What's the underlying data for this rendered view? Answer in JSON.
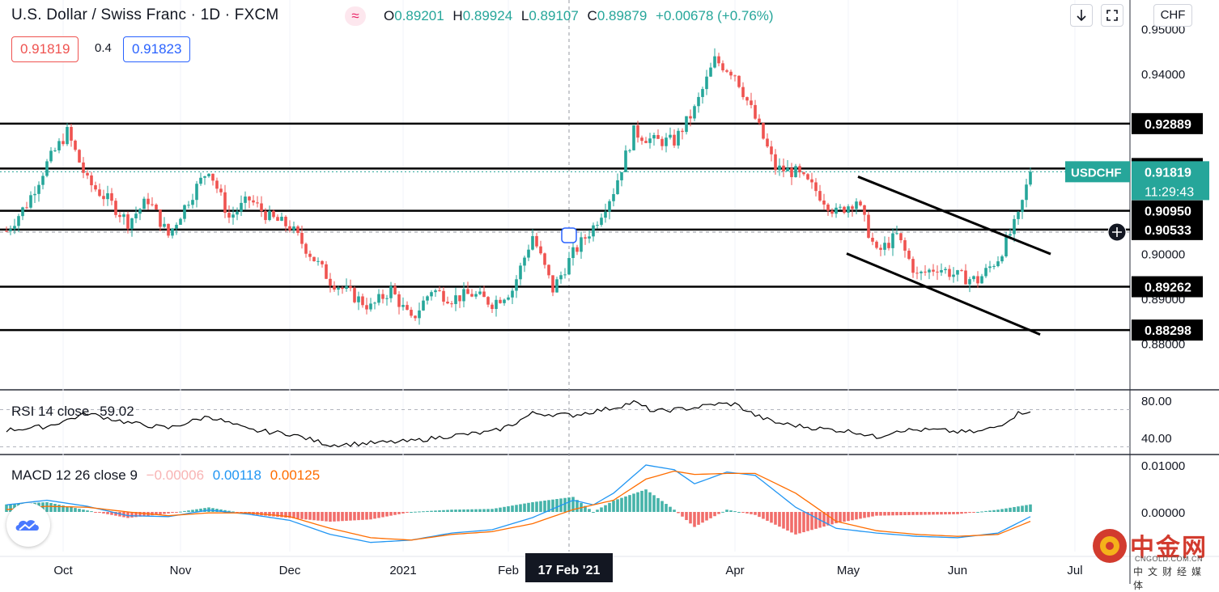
{
  "header": {
    "title": "U.S. Dollar / Swiss Franc · 1D · FXCM",
    "indicator_icon": "≈",
    "ohlc": [
      {
        "k": "O",
        "v": "0.89201"
      },
      {
        "k": "H",
        "v": "0.89924"
      },
      {
        "k": "L",
        "v": "0.89107"
      },
      {
        "k": "C",
        "v": "0.89879"
      }
    ],
    "change": "+0.00678 (+0.76%)",
    "sell_price": "0.91819",
    "spread": "0.4",
    "buy_price": "0.91823"
  },
  "toolbar": {
    "download_icon": "down-arrow-icon",
    "fullscreen_icon": "fullscreen-icon",
    "currency_button": "CHF"
  },
  "rsi": {
    "label": "RSI 14 close",
    "value": "59.02"
  },
  "macd": {
    "label": "MACD 12 26 close 9",
    "hist": "−0.00006",
    "macd": "0.00118",
    "signal": "0.00125"
  },
  "watermark": {
    "name": "中金网",
    "url": "CNGOLD.COM.CN",
    "tag": "中文财经媒体"
  },
  "colors": {
    "up": "#26a69a",
    "down": "#ef5350",
    "level": "#000000",
    "macd": "#2196f3",
    "signal": "#ff6d00",
    "rsi": "#000000",
    "symbol_tag": "#26a69a"
  },
  "chart_data": [
    {
      "type": "candlestick",
      "title": "U.S. Dollar / Swiss Franc · 1D · FXCM",
      "symbol": "USDCHF",
      "x_ticks": [
        "Oct",
        "Nov",
        "Dec",
        "2021",
        "Feb",
        "17 Feb '21",
        "Apr",
        "May",
        "Jun",
        "Jul"
      ],
      "crosshair_date": "17 Feb '21",
      "y_ticks": [
        0.95,
        0.94,
        0.9,
        0.89,
        0.88
      ],
      "ylim": [
        0.874,
        0.953
      ],
      "horizontal_levels": [
        0.92889,
        0.91891,
        0.9095,
        0.90533,
        0.89262,
        0.88298
      ],
      "last_price": 0.91819,
      "countdown": "11:29:43",
      "path": [
        [
          0,
          0.905
        ],
        [
          5,
          0.911
        ],
        [
          10,
          0.92
        ],
        [
          15,
          0.927
        ],
        [
          20,
          0.916
        ],
        [
          25,
          0.912
        ],
        [
          30,
          0.907
        ],
        [
          35,
          0.912
        ],
        [
          40,
          0.904
        ],
        [
          45,
          0.912
        ],
        [
          50,
          0.919
        ],
        [
          55,
          0.908
        ],
        [
          60,
          0.912
        ],
        [
          65,
          0.908
        ],
        [
          70,
          0.906
        ],
        [
          75,
          0.9
        ],
        [
          80,
          0.894
        ],
        [
          85,
          0.891
        ],
        [
          90,
          0.888
        ],
        [
          95,
          0.892
        ],
        [
          100,
          0.885
        ],
        [
          105,
          0.892
        ],
        [
          110,
          0.89
        ],
        [
          115,
          0.891
        ],
        [
          120,
          0.889
        ],
        [
          125,
          0.892
        ],
        [
          130,
          0.904
        ],
        [
          135,
          0.892
        ],
        [
          140,
          0.9
        ],
        [
          145,
          0.906
        ],
        [
          150,
          0.914
        ],
        [
          155,
          0.927
        ],
        [
          160,
          0.925
        ],
        [
          165,
          0.925
        ],
        [
          170,
          0.932
        ],
        [
          175,
          0.943
        ],
        [
          180,
          0.94
        ],
        [
          185,
          0.93
        ],
        [
          190,
          0.919
        ],
        [
          195,
          0.918
        ],
        [
          200,
          0.914
        ],
        [
          205,
          0.909
        ],
        [
          210,
          0.912
        ],
        [
          215,
          0.9
        ],
        [
          220,
          0.904
        ],
        [
          225,
          0.895
        ],
        [
          230,
          0.897
        ],
        [
          235,
          0.895
        ],
        [
          240,
          0.894
        ],
        [
          245,
          0.899
        ],
        [
          250,
          0.908
        ],
        [
          253,
          0.9182
        ]
      ],
      "channel_lines": [
        {
          "from": [
            "2021-04-30",
            0.9171
          ],
          "to": [
            "2021-06-28",
            0.8999
          ]
        },
        {
          "from": [
            "2021-05-01",
            0.9
          ],
          "to": [
            "2021-06-28",
            0.882
          ]
        }
      ]
    },
    {
      "type": "line",
      "title": "RSI 14 close",
      "current": 59.02,
      "y_ticks": [
        80,
        40
      ],
      "ylim": [
        28,
        88
      ],
      "bands": [
        70,
        30
      ],
      "path": [
        [
          0,
          48
        ],
        [
          10,
          52
        ],
        [
          20,
          66
        ],
        [
          30,
          56
        ],
        [
          40,
          50
        ],
        [
          50,
          63
        ],
        [
          60,
          48
        ],
        [
          70,
          44
        ],
        [
          80,
          32
        ],
        [
          90,
          34
        ],
        [
          100,
          36
        ],
        [
          110,
          42
        ],
        [
          120,
          46
        ],
        [
          125,
          54
        ],
        [
          130,
          66
        ],
        [
          140,
          64
        ],
        [
          150,
          72
        ],
        [
          155,
          78
        ],
        [
          160,
          68
        ],
        [
          170,
          72
        ],
        [
          175,
          76
        ],
        [
          180,
          76
        ],
        [
          185,
          64
        ],
        [
          190,
          56
        ],
        [
          200,
          50
        ],
        [
          210,
          46
        ],
        [
          215,
          40
        ],
        [
          220,
          48
        ],
        [
          230,
          48
        ],
        [
          235,
          46
        ],
        [
          240,
          46
        ],
        [
          245,
          52
        ],
        [
          250,
          66
        ],
        [
          253,
          69
        ]
      ]
    },
    {
      "type": "line+bar",
      "title": "MACD 12 26 close 9",
      "values": {
        "histogram": -6e-05,
        "macd": 0.00118,
        "signal": 0.00125
      },
      "y_ticks": [
        0.01,
        0.0
      ],
      "ylim": [
        -0.0075,
        0.0115
      ],
      "macd_path": [
        [
          0,
          0.0015
        ],
        [
          10,
          0.0025
        ],
        [
          20,
          0.0012
        ],
        [
          30,
          -0.0008
        ],
        [
          40,
          -0.001
        ],
        [
          50,
          0.0004
        ],
        [
          60,
          -0.0005
        ],
        [
          70,
          -0.0018
        ],
        [
          80,
          -0.0048
        ],
        [
          90,
          -0.0065
        ],
        [
          100,
          -0.006
        ],
        [
          110,
          -0.0045
        ],
        [
          120,
          -0.0038
        ],
        [
          130,
          -0.0012
        ],
        [
          140,
          0.0025
        ],
        [
          145,
          0.0015
        ],
        [
          150,
          0.004
        ],
        [
          158,
          0.01
        ],
        [
          165,
          0.009
        ],
        [
          170,
          0.006
        ],
        [
          178,
          0.0085
        ],
        [
          185,
          0.0078
        ],
        [
          195,
          0.001
        ],
        [
          205,
          -0.0035
        ],
        [
          215,
          -0.0045
        ],
        [
          225,
          -0.0052
        ],
        [
          235,
          -0.0055
        ],
        [
          245,
          -0.0045
        ],
        [
          253,
          -0.001
        ]
      ],
      "signal_path": [
        [
          0,
          0.0005
        ],
        [
          10,
          0.0012
        ],
        [
          20,
          0.001
        ],
        [
          30,
          0.0
        ],
        [
          40,
          -0.0008
        ],
        [
          50,
          -0.0002
        ],
        [
          60,
          -0.0002
        ],
        [
          70,
          -0.001
        ],
        [
          80,
          -0.0035
        ],
        [
          90,
          -0.0055
        ],
        [
          100,
          -0.006
        ],
        [
          110,
          -0.0048
        ],
        [
          120,
          -0.0042
        ],
        [
          130,
          -0.0025
        ],
        [
          140,
          0.0005
        ],
        [
          150,
          0.0025
        ],
        [
          158,
          0.007
        ],
        [
          165,
          0.0087
        ],
        [
          170,
          0.008
        ],
        [
          178,
          0.0082
        ],
        [
          185,
          0.0082
        ],
        [
          195,
          0.004
        ],
        [
          205,
          -0.002
        ],
        [
          215,
          -0.004
        ],
        [
          225,
          -0.0048
        ],
        [
          235,
          -0.0052
        ],
        [
          245,
          -0.0048
        ],
        [
          253,
          -0.002
        ]
      ]
    }
  ]
}
